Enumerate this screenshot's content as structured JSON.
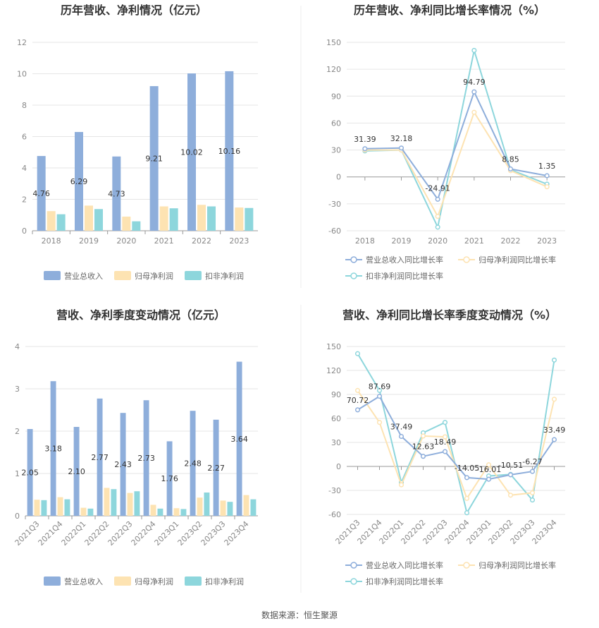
{
  "footer": {
    "source": "数据来源：恒生聚源"
  },
  "colors": {
    "revenue": "#8eaedb",
    "net_profit": "#fde3b2",
    "deducted": "#8dd6dc",
    "grid": "#e6e6e6",
    "axis": "#999999"
  },
  "chart_data": [
    {
      "id": "annual_values",
      "type": "bar",
      "title": "历年营收、净利情况（亿元）",
      "categories": [
        "2018",
        "2019",
        "2020",
        "2021",
        "2022",
        "2023"
      ],
      "ylim": [
        0,
        12
      ],
      "yticks": [
        0,
        2,
        4,
        6,
        8,
        10,
        12
      ],
      "series": [
        {
          "name": "营业总收入",
          "values": [
            4.76,
            6.29,
            4.73,
            9.21,
            10.02,
            10.16
          ],
          "labels": [
            "4.76",
            "6.29",
            "4.73",
            "9.21",
            "10.02",
            "10.16"
          ]
        },
        {
          "name": "归母净利润",
          "values": [
            1.25,
            1.6,
            0.9,
            1.55,
            1.65,
            1.48
          ]
        },
        {
          "name": "扣非净利润",
          "values": [
            1.05,
            1.38,
            0.6,
            1.43,
            1.55,
            1.45
          ]
        }
      ],
      "grid": true,
      "legend": "bottom"
    },
    {
      "id": "annual_growth",
      "type": "line",
      "title": "历年营收、净利同比增长率情况（%）",
      "categories": [
        "2018",
        "2019",
        "2020",
        "2021",
        "2022",
        "2023"
      ],
      "ylim": [
        -60,
        150
      ],
      "yticks": [
        -60,
        -30,
        0,
        30,
        60,
        90,
        120,
        150
      ],
      "series": [
        {
          "name": "营业总收入同比增长率",
          "values": [
            31.39,
            32.18,
            -24.91,
            94.79,
            8.85,
            1.35
          ],
          "labels": [
            "31.39",
            "32.18",
            "-24.91",
            "94.79",
            "8.85",
            "1.35"
          ]
        },
        {
          "name": "归母净利润同比增长率",
          "values": [
            30,
            30,
            -44,
            72,
            7,
            -11
          ]
        },
        {
          "name": "扣非净利润同比增长率",
          "values": [
            29,
            30,
            -56,
            141,
            8,
            -8
          ]
        }
      ],
      "grid": true,
      "legend": "bottom"
    },
    {
      "id": "quarterly_values",
      "type": "bar",
      "title": "营收、净利季度变动情况（亿元）",
      "categories": [
        "2021Q3",
        "2021Q4",
        "2022Q1",
        "2022Q2",
        "2022Q3",
        "2022Q4",
        "2023Q1",
        "2023Q2",
        "2023Q3",
        "2023Q4"
      ],
      "ylim": [
        0,
        4
      ],
      "yticks": [
        0,
        1,
        2,
        3,
        4
      ],
      "series": [
        {
          "name": "营业总收入",
          "values": [
            2.05,
            3.18,
            2.1,
            2.77,
            2.43,
            2.73,
            1.76,
            2.48,
            2.27,
            3.64
          ],
          "labels": [
            "2.05",
            "3.18",
            "2.10",
            "2.77",
            "2.43",
            "2.73",
            "1.76",
            "2.48",
            "2.27",
            "3.64"
          ]
        },
        {
          "name": "归母净利润",
          "values": [
            0.38,
            0.44,
            0.19,
            0.66,
            0.54,
            0.26,
            0.18,
            0.43,
            0.36,
            0.49
          ]
        },
        {
          "name": "扣非净利润",
          "values": [
            0.37,
            0.39,
            0.17,
            0.63,
            0.58,
            0.17,
            0.16,
            0.55,
            0.33,
            0.39
          ]
        }
      ],
      "grid": true,
      "legend": "bottom"
    },
    {
      "id": "quarterly_growth",
      "type": "line",
      "title": "营收、净利同比增长率季度变动情况（%）",
      "categories": [
        "2021Q3",
        "2021Q4",
        "2022Q1",
        "2022Q2",
        "2022Q3",
        "2022Q4",
        "2023Q1",
        "2023Q2",
        "2023Q3",
        "2023Q4"
      ],
      "ylim": [
        -60,
        150
      ],
      "yticks": [
        -60,
        -30,
        0,
        30,
        60,
        90,
        120,
        150
      ],
      "series": [
        {
          "name": "营业总收入同比增长率",
          "values": [
            70.72,
            87.69,
            37.49,
            12.63,
            18.49,
            -14.05,
            -16.01,
            -10.51,
            -6.27,
            33.49
          ],
          "labels": [
            "70.72",
            "87.69",
            "37.49",
            "12.63",
            "18.49",
            "-14.05",
            "-16.01",
            "-10.51",
            "-6.27",
            "33.49"
          ]
        },
        {
          "name": "归母净利润同比增长率",
          "values": [
            95,
            55,
            -23,
            38,
            37,
            -40,
            2,
            -36,
            -33,
            84
          ]
        },
        {
          "name": "扣非净利润同比增长率",
          "values": [
            141,
            95,
            -20,
            42,
            55,
            -58,
            -12,
            -10,
            -42,
            133
          ]
        }
      ],
      "grid": true,
      "legend": "bottom"
    }
  ]
}
